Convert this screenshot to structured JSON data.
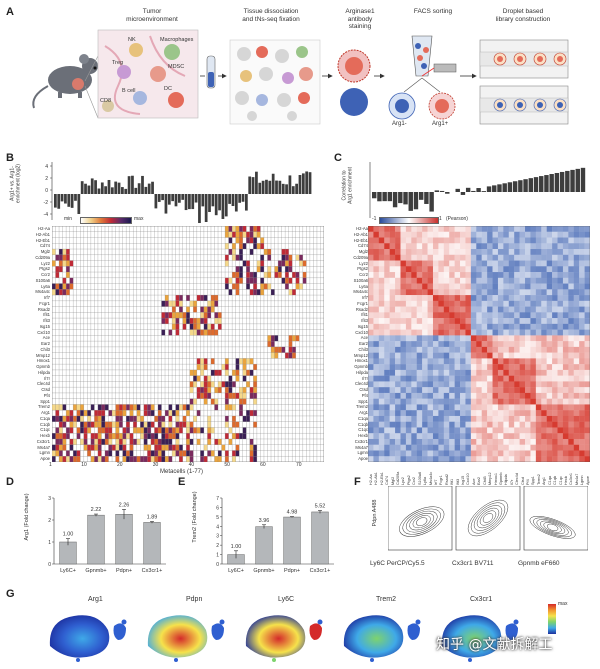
{
  "panels": {
    "a": {
      "letter": "A",
      "steps": [
        {
          "label": "Tumor\nmicroenvironment"
        },
        {
          "label": "Tissue dissociation\nand tNs-seq fixation"
        },
        {
          "label": "Arginase1\nantibody\nstaining"
        },
        {
          "label": "FACS sorting"
        },
        {
          "label": "Droplet based\nlibrary construction"
        }
      ],
      "cell_types": [
        "NK",
        "Macrophages",
        "Treg",
        "MDSC",
        "B cell",
        "DC",
        "CD8"
      ],
      "sort_labels": [
        "Arg1-",
        "Arg1+"
      ]
    },
    "b": {
      "letter": "B",
      "ylabel": "Arg1+ vs. Arg1-\nenrichment (log2)",
      "legend_min": "min",
      "legend_max": "max",
      "xlabel": "Metacells (1-77)",
      "x_ticks": [
        "1",
        "10",
        "20",
        "30",
        "40",
        "50",
        "60",
        "70"
      ],
      "y_ticks": [
        "4",
        "2",
        "0",
        "-2",
        "-4"
      ]
    },
    "c": {
      "letter": "C",
      "ylabel": "Correlation to\nArg1 enrichment",
      "legend_neg": "-1",
      "legend_pos": "1",
      "legend_label": "(Pearson)"
    },
    "d": {
      "letter": "D",
      "ylabel": "Arg1 (Fold change)",
      "chart_data": {
        "type": "bar",
        "categories": [
          "Ly6C+",
          "Gpnmb+",
          "Pdpn+",
          "Cx3cr1+"
        ],
        "values": [
          1.0,
          2.22,
          2.26,
          1.89
        ],
        "value_labels": [
          "1.00",
          "2.22",
          "2.26",
          "1.89"
        ],
        "errors": [
          0.15,
          0.05,
          0.22,
          0.04
        ],
        "ylim": [
          0,
          3
        ],
        "y_ticks": [
          "0",
          "1",
          "2",
          "3"
        ],
        "ylabel": "Arg1 (Fold change)"
      }
    },
    "e": {
      "letter": "E",
      "ylabel": "Trem2 (Fold change)",
      "chart_data": {
        "type": "bar",
        "categories": [
          "Ly6C+",
          "Gpnmb+",
          "Pdpn+",
          "Cx3cr1+"
        ],
        "values": [
          1.0,
          3.96,
          4.98,
          5.52
        ],
        "value_labels": [
          "1.00",
          "3.96",
          "4.98",
          "5.52"
        ],
        "errors": [
          0.4,
          0.2,
          0.05,
          0.15
        ],
        "ylim": [
          0,
          7
        ],
        "y_ticks": [
          "0",
          "1",
          "2",
          "3",
          "4",
          "5",
          "6",
          "7"
        ],
        "ylabel": "Trem2 (Fold change)"
      }
    },
    "f": {
      "letter": "F",
      "ylabel": "Pdpn A488",
      "xlabels": [
        "Ly6C PerCP/Cy5.5",
        "Cx3cr1 BV711",
        "Gpnmb eF660"
      ]
    },
    "g": {
      "letter": "G",
      "titles": [
        "Arg1",
        "Pdpn",
        "Ly6C",
        "Trem2",
        "Cx3cr1"
      ],
      "legend_max": "max"
    }
  },
  "genes": [
    "H2-Aa",
    "H2-Ab1",
    "H2-Eb1",
    "Cd74",
    "Mgl2",
    "Cd209a",
    "Lyz2",
    "Ptgs2",
    "Ccr2",
    "S100a6",
    "Ly6a",
    "Ms4a4c",
    "Irf7",
    "Fcgr1",
    "Rsad2",
    "Ifit1",
    "Ifit3",
    "Isg15",
    "Cxcl10",
    "Ace",
    "Ear2",
    "Chil3",
    "Mmp12",
    "Hmox1",
    "Gpnmb",
    "Hilpda",
    "Il7r",
    "Clec4d",
    "Ctsd",
    "Pf4",
    "Spp1",
    "Trem2",
    "Arg1",
    "C1qa",
    "C1qb",
    "C1qc",
    "Hexb",
    "Cx3cr1",
    "Ms4a7",
    "Lgmn",
    "Apoe"
  ],
  "colors": {
    "bar_dark": "#3d3d3d",
    "heat_red": "#cc2a2a",
    "heat_orange": "#e8962e",
    "heat_purple": "#5a2a6a",
    "corr_red": "#d63b30",
    "corr_blue": "#3a5fb0",
    "bar_gray": "#b4b7ba"
  },
  "watermark": "知乎 @文献拆解工"
}
